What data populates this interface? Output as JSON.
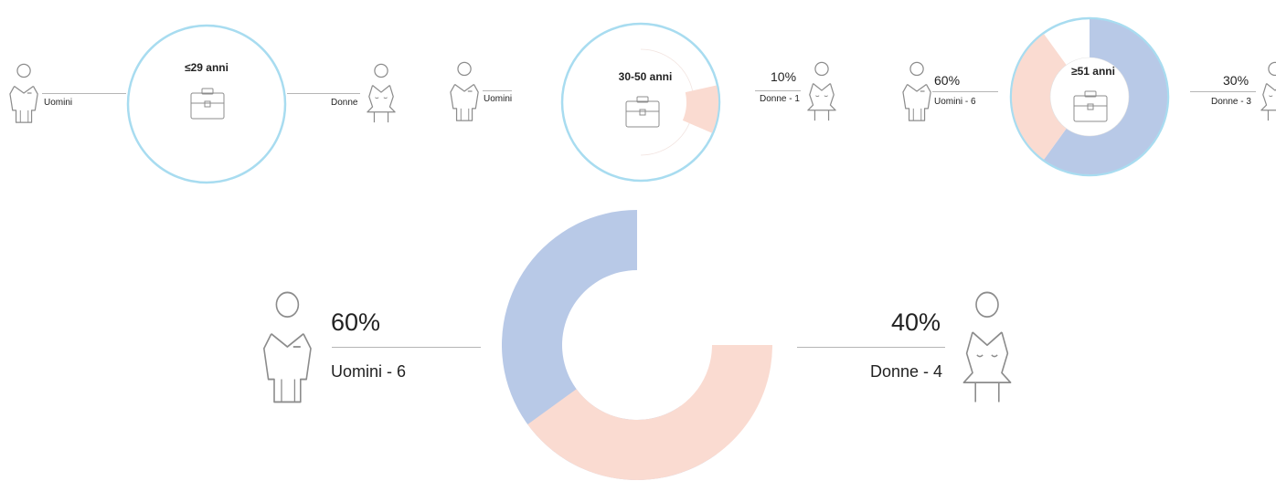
{
  "chart_data": [
    {
      "type": "pie",
      "title": "≤29 anni",
      "categories": [
        "Uomini",
        "Donne"
      ],
      "values": [
        0,
        0
      ],
      "labels": {
        "men": "Uomini",
        "women": "Donne"
      }
    },
    {
      "type": "pie",
      "title": "30-50 anni",
      "categories": [
        "Uomini",
        "Donne"
      ],
      "values": [
        0,
        1
      ],
      "labels": {
        "men": "Uomini",
        "women_pct": "10%",
        "women": "Donne - 1"
      }
    },
    {
      "type": "pie",
      "title": "≥51 anni",
      "categories": [
        "Uomini",
        "Donne"
      ],
      "values": [
        6,
        3
      ],
      "labels": {
        "men_pct": "60%",
        "men": "Uomini - 6",
        "women_pct": "30%",
        "women": "Donne - 3"
      }
    },
    {
      "type": "pie",
      "title": "",
      "categories": [
        "Uomini",
        "Donne"
      ],
      "values": [
        6,
        4
      ],
      "labels": {
        "men_pct": "60%",
        "men": "Uomini - 6",
        "women_pct": "40%",
        "women": "Donne - 4"
      }
    }
  ],
  "colors": {
    "men": "#b8c9e7",
    "women": "#fadbd1",
    "ring": "#a8dcf0",
    "line": "#b5b5b5",
    "icon": "#8c8c8c"
  },
  "icons": [
    "man-icon",
    "woman-icon",
    "briefcase-icon"
  ]
}
